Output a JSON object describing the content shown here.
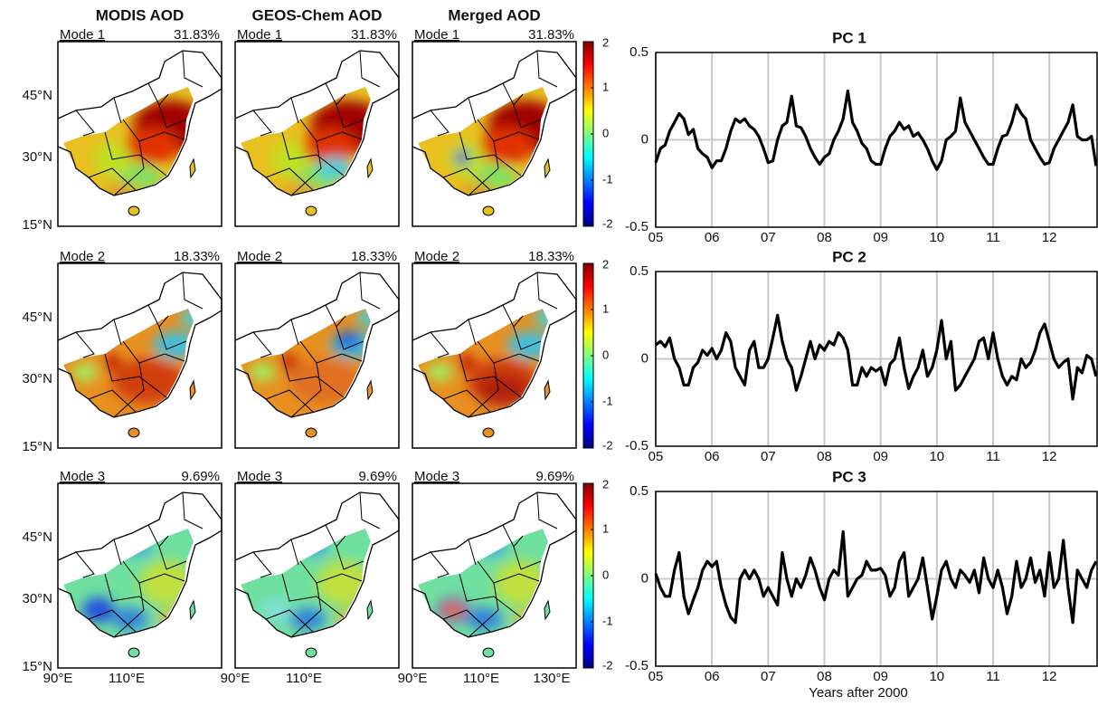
{
  "maps": {
    "columns": [
      "MODIS AOD",
      "GEOS-Chem AOD",
      "Merged AOD"
    ],
    "modes": [
      {
        "label": "Mode 1",
        "variance": "31.83%"
      },
      {
        "label": "Mode 2",
        "variance": "18.33%"
      },
      {
        "label": "Mode 3",
        "variance": "9.69%"
      }
    ],
    "lat_labels": [
      "45°N",
      "30°N",
      "15°N"
    ],
    "lon_labels": [
      "90°E",
      "110°E",
      "130°E"
    ],
    "colorbar": {
      "lim": [
        -2,
        2
      ],
      "ticks": [
        2,
        1,
        0,
        -1,
        -2
      ]
    }
  },
  "chart_data": [
    {
      "type": "line",
      "title": "PC 1",
      "color": "#000000",
      "grid": true,
      "xlim": [
        5,
        12.85
      ],
      "ylim": [
        -0.5,
        0.5
      ],
      "yticks": [
        -0.5,
        0,
        0.5
      ],
      "xticks": [
        {
          "value": 5,
          "label": "05"
        },
        {
          "value": 6,
          "label": "06"
        },
        {
          "value": 7,
          "label": "07"
        },
        {
          "value": 8,
          "label": "08"
        },
        {
          "value": 9,
          "label": "09"
        },
        {
          "value": 10,
          "label": "10"
        },
        {
          "value": 11,
          "label": "11"
        },
        {
          "value": 12,
          "label": "12"
        }
      ],
      "x": [
        5,
        5.083,
        5.167,
        5.25,
        5.333,
        5.417,
        5.5,
        5.583,
        5.667,
        5.75,
        5.833,
        5.917,
        6,
        6.083,
        6.167,
        6.25,
        6.333,
        6.417,
        6.5,
        6.583,
        6.667,
        6.75,
        6.833,
        6.917,
        7,
        7.083,
        7.167,
        7.25,
        7.333,
        7.417,
        7.5,
        7.583,
        7.667,
        7.75,
        7.833,
        7.917,
        8,
        8.083,
        8.167,
        8.25,
        8.333,
        8.417,
        8.5,
        8.583,
        8.667,
        8.75,
        8.833,
        8.917,
        9,
        9.083,
        9.167,
        9.25,
        9.333,
        9.417,
        9.5,
        9.583,
        9.667,
        9.75,
        9.833,
        9.917,
        10,
        10.083,
        10.167,
        10.25,
        10.333,
        10.417,
        10.5,
        10.583,
        10.667,
        10.75,
        10.833,
        10.917,
        11,
        11.083,
        11.167,
        11.25,
        11.333,
        11.417,
        11.5,
        11.583,
        11.667,
        11.75,
        11.833,
        11.917,
        12,
        12.083,
        12.167,
        12.25,
        12.333,
        12.417,
        12.5,
        12.583,
        12.667,
        12.75,
        12.833
      ],
      "values": [
        -0.13,
        -0.05,
        -0.03,
        0.05,
        0.1,
        0.15,
        0.12,
        0.03,
        0.06,
        -0.05,
        -0.08,
        -0.1,
        -0.16,
        -0.12,
        -0.12,
        -0.05,
        0.05,
        0.12,
        0.1,
        0.12,
        0.08,
        0.06,
        0.02,
        -0.05,
        -0.13,
        -0.12,
        0,
        0.08,
        0.1,
        0.25,
        0.08,
        0.07,
        0.02,
        -0.05,
        -0.1,
        -0.14,
        -0.1,
        -0.08,
        0,
        0.05,
        0.12,
        0.28,
        0.1,
        0.05,
        -0.02,
        -0.05,
        -0.12,
        -0.14,
        -0.14,
        -0.05,
        0.02,
        0.05,
        0.1,
        0.06,
        0.08,
        0.02,
        0.04,
        0,
        -0.05,
        -0.12,
        -0.17,
        -0.12,
        0,
        0.02,
        0.05,
        0.24,
        0.1,
        0.05,
        0,
        -0.05,
        -0.1,
        -0.14,
        -0.14,
        -0.05,
        0.02,
        0.03,
        0.1,
        0.2,
        0.15,
        0.12,
        0,
        -0.05,
        -0.1,
        -0.14,
        -0.13,
        -0.05,
        0,
        0.05,
        0.1,
        0.2,
        0.02,
        0,
        0,
        0.02,
        -0.15
      ]
    },
    {
      "type": "line",
      "title": "PC 2",
      "color": "#000000",
      "grid": true,
      "xlim": [
        5,
        12.85
      ],
      "ylim": [
        -0.5,
        0.5
      ],
      "yticks": [
        -0.5,
        0,
        0.5
      ],
      "xticks": [
        {
          "value": 5,
          "label": "05"
        },
        {
          "value": 6,
          "label": "06"
        },
        {
          "value": 7,
          "label": "07"
        },
        {
          "value": 8,
          "label": "08"
        },
        {
          "value": 9,
          "label": "09"
        },
        {
          "value": 10,
          "label": "10"
        },
        {
          "value": 11,
          "label": "11"
        },
        {
          "value": 12,
          "label": "12"
        }
      ],
      "x": [
        5,
        5.083,
        5.167,
        5.25,
        5.333,
        5.417,
        5.5,
        5.583,
        5.667,
        5.75,
        5.833,
        5.917,
        6,
        6.083,
        6.167,
        6.25,
        6.333,
        6.417,
        6.5,
        6.583,
        6.667,
        6.75,
        6.833,
        6.917,
        7,
        7.083,
        7.167,
        7.25,
        7.333,
        7.417,
        7.5,
        7.583,
        7.667,
        7.75,
        7.833,
        7.917,
        8,
        8.083,
        8.167,
        8.25,
        8.333,
        8.417,
        8.5,
        8.583,
        8.667,
        8.75,
        8.833,
        8.917,
        9,
        9.083,
        9.167,
        9.25,
        9.333,
        9.417,
        9.5,
        9.583,
        9.667,
        9.75,
        9.833,
        9.917,
        10,
        10.083,
        10.167,
        10.25,
        10.333,
        10.417,
        10.5,
        10.583,
        10.667,
        10.75,
        10.833,
        10.917,
        11,
        11.083,
        11.167,
        11.25,
        11.333,
        11.417,
        11.5,
        11.583,
        11.667,
        11.75,
        11.833,
        11.917,
        12,
        12.083,
        12.167,
        12.25,
        12.333,
        12.417,
        12.5,
        12.583,
        12.667,
        12.75,
        12.833
      ],
      "values": [
        0.08,
        0.1,
        0.07,
        0.12,
        0,
        -0.05,
        -0.15,
        -0.15,
        -0.05,
        -0.02,
        0.05,
        0.02,
        0.06,
        0,
        0.05,
        0.15,
        0.1,
        -0.05,
        -0.1,
        -0.15,
        0.05,
        0.1,
        -0.05,
        -0.05,
        0,
        0.12,
        0.25,
        0.1,
        0,
        -0.05,
        -0.18,
        -0.1,
        0,
        0.1,
        0,
        0.08,
        0.05,
        0.1,
        0.08,
        0.15,
        0.12,
        0.05,
        -0.15,
        -0.15,
        -0.05,
        -0.1,
        -0.05,
        -0.07,
        -0.05,
        -0.15,
        -0.03,
        0,
        0.12,
        -0.05,
        -0.17,
        -0.1,
        -0.05,
        0.05,
        -0.1,
        -0.05,
        0.05,
        0.22,
        0,
        0.1,
        -0.18,
        -0.15,
        -0.1,
        -0.05,
        0,
        0.1,
        0.12,
        0,
        0.15,
        0,
        -0.1,
        -0.15,
        -0.1,
        -0.12,
        0,
        -0.05,
        -0.02,
        0.05,
        0.15,
        0.2,
        0.1,
        0,
        -0.05,
        -0.02,
        0,
        -0.23,
        -0.05,
        -0.08,
        0.02,
        0,
        -0.1
      ]
    },
    {
      "type": "line",
      "title": "PC 3",
      "xlabel": "Years after 2000",
      "color": "#000000",
      "grid": true,
      "xlim": [
        5,
        12.85
      ],
      "ylim": [
        -0.5,
        0.5
      ],
      "yticks": [
        -0.5,
        0,
        0.5
      ],
      "xticks": [
        {
          "value": 5,
          "label": "05"
        },
        {
          "value": 6,
          "label": "06"
        },
        {
          "value": 7,
          "label": "07"
        },
        {
          "value": 8,
          "label": "08"
        },
        {
          "value": 9,
          "label": "09"
        },
        {
          "value": 10,
          "label": "10"
        },
        {
          "value": 11,
          "label": "11"
        },
        {
          "value": 12,
          "label": "12"
        }
      ],
      "x": [
        5,
        5.083,
        5.167,
        5.25,
        5.333,
        5.417,
        5.5,
        5.583,
        5.667,
        5.75,
        5.833,
        5.917,
        6,
        6.083,
        6.167,
        6.25,
        6.333,
        6.417,
        6.5,
        6.583,
        6.667,
        6.75,
        6.833,
        6.917,
        7,
        7.083,
        7.167,
        7.25,
        7.333,
        7.417,
        7.5,
        7.583,
        7.667,
        7.75,
        7.833,
        7.917,
        8,
        8.083,
        8.167,
        8.25,
        8.333,
        8.417,
        8.5,
        8.583,
        8.667,
        8.75,
        8.833,
        8.917,
        9,
        9.083,
        9.167,
        9.25,
        9.333,
        9.417,
        9.5,
        9.583,
        9.667,
        9.75,
        9.833,
        9.917,
        10,
        10.083,
        10.167,
        10.25,
        10.333,
        10.417,
        10.5,
        10.583,
        10.667,
        10.75,
        10.833,
        10.917,
        11,
        11.083,
        11.167,
        11.25,
        11.333,
        11.417,
        11.5,
        11.583,
        11.667,
        11.75,
        11.833,
        11.917,
        12,
        12.083,
        12.167,
        12.25,
        12.333,
        12.417,
        12.5,
        12.583,
        12.667,
        12.75,
        12.833
      ],
      "values": [
        0.03,
        -0.05,
        -0.1,
        -0.1,
        0.05,
        0.15,
        -0.1,
        -0.2,
        -0.12,
        -0.05,
        0.05,
        0.1,
        0.07,
        0.1,
        -0.05,
        -0.15,
        -0.22,
        -0.25,
        0,
        0.05,
        0,
        0.05,
        0,
        -0.1,
        -0.05,
        -0.1,
        -0.15,
        0.15,
        0,
        -0.1,
        0,
        -0.05,
        0.02,
        0.12,
        0.05,
        -0.05,
        -0.12,
        0,
        0.05,
        0.02,
        0.27,
        -0.1,
        -0.05,
        0,
        0.02,
        0.1,
        0.05,
        0.05,
        0.06,
        0.02,
        -0.1,
        -0.05,
        0.1,
        0.15,
        -0.1,
        -0.05,
        0,
        0.12,
        -0.05,
        -0.23,
        -0.1,
        0.05,
        0.1,
        0,
        -0.05,
        0.05,
        0.02,
        -0.02,
        0.05,
        -0.08,
        0.12,
        0,
        -0.05,
        0.05,
        -0.05,
        -0.2,
        -0.1,
        0.1,
        -0.05,
        0,
        0.12,
        -0.02,
        0.05,
        -0.1,
        0.15,
        -0.05,
        0,
        0.22,
        -0.05,
        -0.25,
        0.05,
        0,
        -0.05,
        0.05,
        0.1
      ]
    }
  ]
}
